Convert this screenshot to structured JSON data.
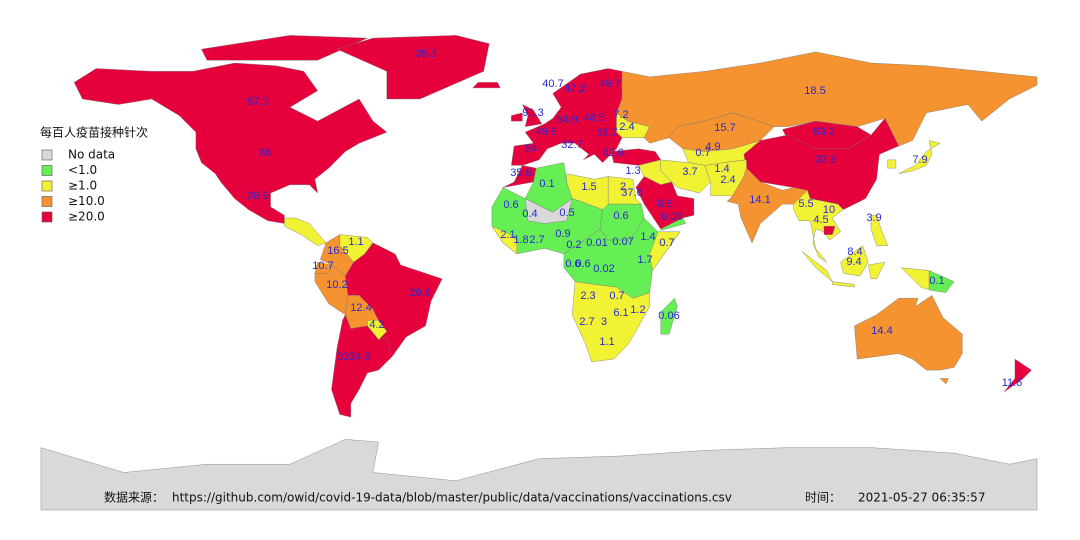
{
  "legend": {
    "title": "每百人疫苗接种针次",
    "items": [
      {
        "label": "No data",
        "color": "#d9d9d9"
      },
      {
        "label": "<1.0",
        "color": "#66ee55"
      },
      {
        "label": "≥1.0",
        "color": "#f2f235"
      },
      {
        "label": "≥10.0",
        "color": "#f4932f"
      },
      {
        "label": "≥20.0",
        "color": "#e6003c"
      }
    ]
  },
  "map_labels": [
    "35.3",
    "57.3",
    "86",
    "20.9",
    "18.5",
    "40.7",
    "47.2",
    "49.7",
    "91.3",
    "64.9",
    "48.5",
    "49.8",
    "7.2",
    "2.4",
    "38.7",
    "54",
    "32.7",
    "32.6",
    "35.6",
    "15.7",
    "4.9",
    "0.7",
    "1.4",
    "2.4",
    "1.3",
    "3.7",
    "83.2",
    "37.9",
    "7.9",
    "14.1",
    "5.5",
    "10",
    "4.5",
    "3.9",
    "8.4",
    "9.4",
    "0.1",
    "14.4",
    "11.6",
    "0.1",
    "1.5",
    "2",
    "37.6",
    "8.8",
    "0.06",
    "0.6",
    "0.4",
    "0.5",
    "0.6",
    "2.1",
    "1.8",
    "2.7",
    "0.9",
    "0.2",
    "0.01",
    "0.07",
    "1.4",
    "0.7",
    "1.7",
    "0.6",
    "0.6",
    "0.02",
    "2.3",
    "0.7",
    "2.7",
    "3",
    "6.1",
    "1.2",
    "0.06",
    "1.1",
    "1.1",
    "16.5",
    "10.7",
    "10.2",
    "29.9",
    "12.4",
    "4.2",
    "33",
    "24.8"
  ],
  "footer": {
    "source_label": "数据来源：",
    "source_url": "https://github.com/owid/covid-19-data/blob/master/public/data/vaccinations/vaccinations.csv",
    "time_label": "时间：",
    "time_value": "2021-05-27 06:35:57"
  }
}
